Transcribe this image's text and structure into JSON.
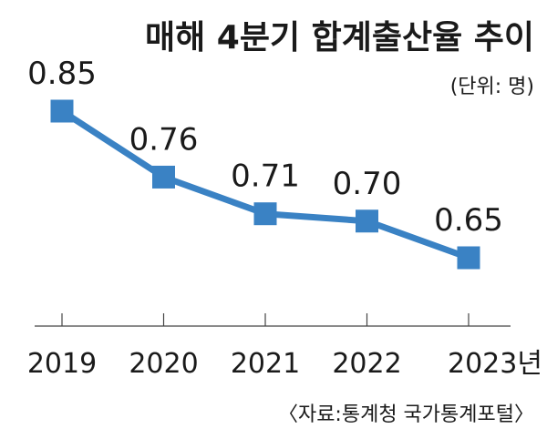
{
  "chart_data": {
    "type": "line",
    "title": "매해 4분기 합계출산율 추이",
    "unit": "(단위: 명)",
    "source": "〈자료:통계청 국가통계포털〉",
    "categories": [
      "2019",
      "2020",
      "2021",
      "2022",
      "2023년"
    ],
    "series": [
      {
        "values": [
          0.85,
          0.76,
          0.71,
          0.7,
          0.65
        ],
        "labels": [
          "0.85",
          "0.76",
          "0.71",
          "0.70",
          "0.65"
        ]
      }
    ],
    "ylim": [
      0.5,
      0.9
    ],
    "grid": false,
    "line_color": "#3a82c4",
    "marker_color": "#3a82c4",
    "marker": "square"
  }
}
